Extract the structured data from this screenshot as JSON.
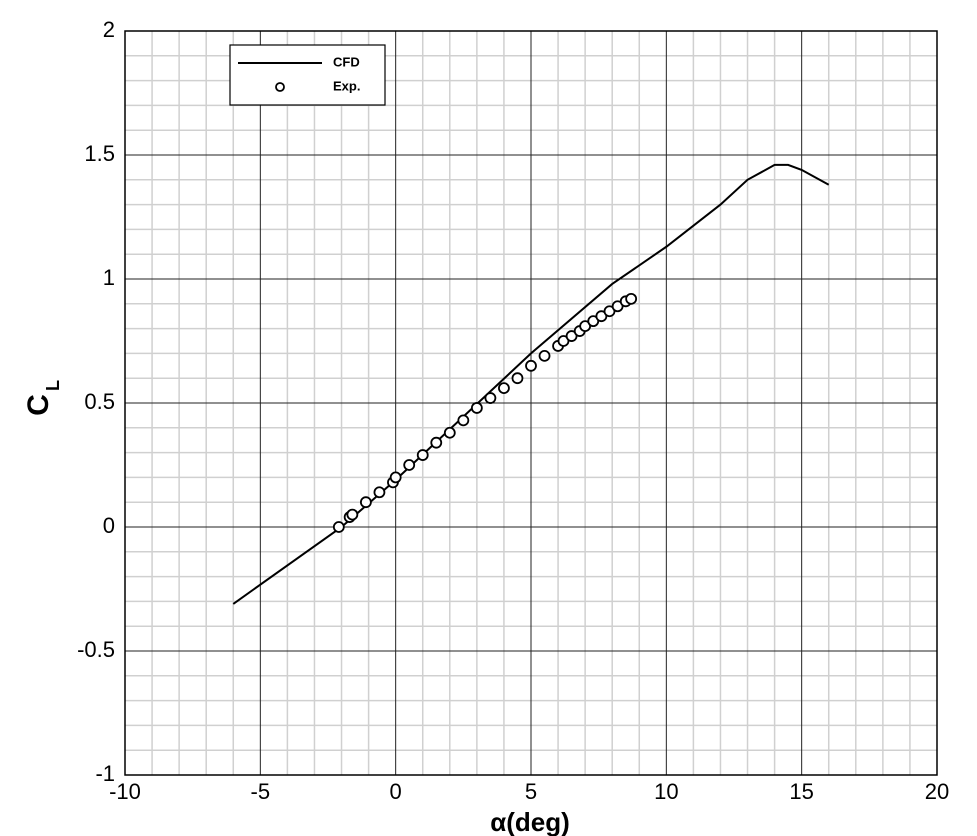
{
  "chart_data": {
    "type": "line",
    "xlabel": "α(deg)",
    "ylabel": "C",
    "ylabel_sub": "L",
    "xlim": [
      -10,
      20
    ],
    "ylim": [
      -1,
      2
    ],
    "xticks": [
      -10,
      -5,
      0,
      5,
      10,
      15,
      20
    ],
    "yticks": [
      -1,
      -0.5,
      0,
      0.5,
      1,
      1.5,
      2
    ],
    "xminorticks": [
      -9,
      -8,
      -7,
      -6,
      -4,
      -3,
      -2,
      -1,
      1,
      2,
      3,
      4,
      6,
      7,
      8,
      9,
      11,
      12,
      13,
      14,
      16,
      17,
      18,
      19
    ],
    "yminorticks": [
      -0.9,
      -0.8,
      -0.7,
      -0.6,
      -0.4,
      -0.3,
      -0.2,
      -0.1,
      0.1,
      0.2,
      0.3,
      0.4,
      0.6,
      0.7,
      0.8,
      0.9,
      1.1,
      1.2,
      1.3,
      1.4,
      1.6,
      1.7,
      1.8,
      1.9
    ],
    "grid": true,
    "legend": "top-left",
    "series": [
      {
        "name": "CFD",
        "type": "line",
        "color": "#000000",
        "x": [
          -6,
          -2,
          0,
          5,
          8,
          10,
          12,
          13,
          14,
          14.5,
          15,
          16
        ],
        "values": [
          -0.31,
          0.0,
          0.19,
          0.7,
          0.98,
          1.13,
          1.3,
          1.4,
          1.46,
          1.46,
          1.44,
          1.38
        ]
      },
      {
        "name": "Exp.",
        "type": "scatter",
        "color": "#000000",
        "x": [
          -2.1,
          -1.7,
          -1.6,
          -1.1,
          -0.6,
          -0.1,
          0,
          0.5,
          1,
          1.5,
          2,
          2.5,
          3,
          3.5,
          4,
          4.5,
          5,
          5.5,
          6,
          6.2,
          6.5,
          6.8,
          7,
          7.3,
          7.6,
          7.9,
          8.2,
          8.5,
          8.7
        ],
        "values": [
          0.0,
          0.04,
          0.05,
          0.1,
          0.14,
          0.18,
          0.2,
          0.25,
          0.29,
          0.34,
          0.38,
          0.43,
          0.48,
          0.52,
          0.56,
          0.6,
          0.65,
          0.69,
          0.73,
          0.75,
          0.77,
          0.79,
          0.81,
          0.83,
          0.85,
          0.87,
          0.89,
          0.91,
          0.92
        ]
      }
    ]
  }
}
